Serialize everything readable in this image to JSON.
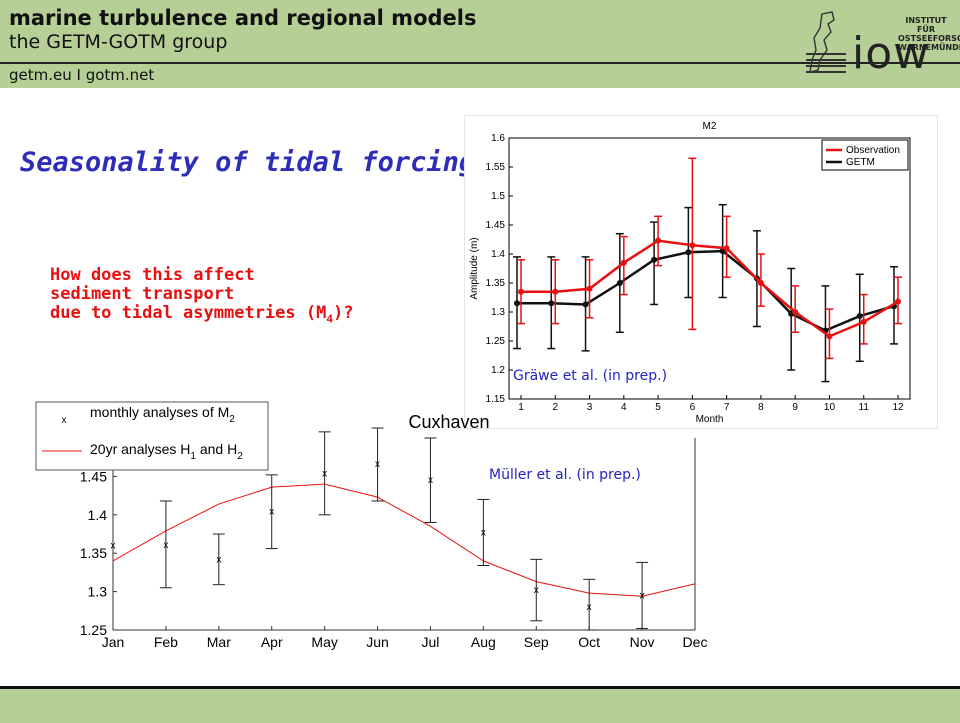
{
  "header": {
    "title": "marine turbulence and regional models",
    "subtitle": "the GETM-GOTM group",
    "links": "getm.eu   I   gotm.net",
    "logo": {
      "line1": "INSTITUT FÜR",
      "line2": "OSTSEEFORSCHUNG",
      "line3": "WARNEMÜNDE",
      "wordmark": "iow"
    }
  },
  "slide": {
    "title": "Seasonality of tidal forcing",
    "question": {
      "line1": "How does this affect",
      "line2": "sediment transport",
      "line3_main": "due to tidal asymmetries (M",
      "line3_sub": "4",
      "line3_end": ")?"
    }
  },
  "credits": {
    "graewe": "Gräwe et al. (in prep.)",
    "mueller": "Müller et al. (in prep.)"
  },
  "colors": {
    "header_bg": "#b5cf96",
    "title": "#2d2db8",
    "question": "#e81010",
    "observation": "#e81010",
    "getm": "#111111"
  },
  "chart_data": [
    {
      "type": "line",
      "title": "M2",
      "xlabel": "Month",
      "ylabel": "Amplitude (m)",
      "x": [
        1,
        2,
        3,
        4,
        5,
        6,
        7,
        8,
        9,
        10,
        11,
        12
      ],
      "x_ticks": [
        "1",
        "2",
        "3",
        "4",
        "5",
        "6",
        "7",
        "8",
        "9",
        "10",
        "11",
        "12"
      ],
      "ylim": [
        1.15,
        1.6
      ],
      "y_ticks": [
        "1.15",
        "1.2",
        "1.25",
        "1.3",
        "1.35",
        "1.4",
        "1.45",
        "1.5",
        "1.55",
        "1.6"
      ],
      "legend_position": "top-right",
      "series": [
        {
          "name": "Observation",
          "color": "#e81010",
          "values": [
            1.335,
            1.335,
            1.34,
            1.385,
            1.423,
            1.415,
            1.41,
            1.35,
            1.3,
            1.258,
            1.283,
            1.318
          ],
          "err_low": [
            1.28,
            1.28,
            1.29,
            1.33,
            1.38,
            1.27,
            1.36,
            1.31,
            1.265,
            1.22,
            1.245,
            1.28
          ],
          "err_high": [
            1.39,
            1.39,
            1.39,
            1.43,
            1.465,
            1.565,
            1.465,
            1.4,
            1.345,
            1.305,
            1.33,
            1.36
          ]
        },
        {
          "name": "GETM",
          "color": "#111111",
          "values": [
            1.315,
            1.315,
            1.313,
            1.35,
            1.39,
            1.403,
            1.405,
            1.358,
            1.297,
            1.268,
            1.293,
            1.31
          ],
          "err_low": [
            1.237,
            1.237,
            1.233,
            1.265,
            1.313,
            1.325,
            1.325,
            1.275,
            1.2,
            1.18,
            1.215,
            1.245
          ],
          "err_high": [
            1.395,
            1.395,
            1.395,
            1.435,
            1.455,
            1.48,
            1.485,
            1.44,
            1.375,
            1.345,
            1.365,
            1.378
          ]
        }
      ]
    },
    {
      "type": "line",
      "title": "Cuxhaven",
      "categories": [
        "Jan",
        "Feb",
        "Mar",
        "Apr",
        "May",
        "Jun",
        "Jul",
        "Aug",
        "Sep",
        "Oct",
        "Nov",
        "Dec"
      ],
      "ylim": [
        1.25,
        1.5
      ],
      "y_ticks": [
        "1.25",
        "1.3",
        "1.35",
        "1.4",
        "1.45"
      ],
      "legend": [
        {
          "name_main": "monthly analyses of M",
          "name_sub": "2"
        },
        {
          "name_main": "20yr analyses H",
          "name_sub": "1",
          "name_mid": " and H",
          "name_sub2": "2"
        }
      ],
      "series": [
        {
          "name": "monthly analyses of M2",
          "marker": "x",
          "values": [
            1.36,
            1.361,
            1.342,
            1.404,
            1.454,
            1.466,
            1.445,
            1.377,
            1.302,
            1.28,
            1.295,
            null
          ],
          "err_low": [
            null,
            1.305,
            1.309,
            1.356,
            1.4,
            1.418,
            1.39,
            1.334,
            1.262,
            1.25,
            1.252,
            null
          ],
          "err_high": [
            null,
            1.418,
            1.375,
            1.452,
            1.508,
            1.513,
            1.5,
            1.42,
            1.342,
            1.316,
            1.338,
            null
          ]
        },
        {
          "name": "20yr analyses H1 and H2",
          "color": "#e81010",
          "values": [
            1.34,
            1.379,
            1.414,
            1.436,
            1.44,
            1.423,
            1.385,
            1.34,
            1.313,
            1.298,
            1.294,
            1.31
          ]
        }
      ]
    }
  ]
}
